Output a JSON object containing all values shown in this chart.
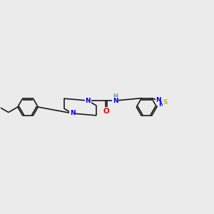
{
  "bg_color": "#ebebeb",
  "bond_color": "#1a1a1a",
  "bond_width": 1.2,
  "N_color": "#0000ee",
  "O_color": "#ee0000",
  "S_color": "#bbbb00",
  "H_color": "#559999",
  "font_size": 6.5,
  "fig_width": 3.0,
  "fig_height": 3.0,
  "dpi": 100,
  "xlim": [
    0,
    15
  ],
  "ylim": [
    0,
    10
  ]
}
